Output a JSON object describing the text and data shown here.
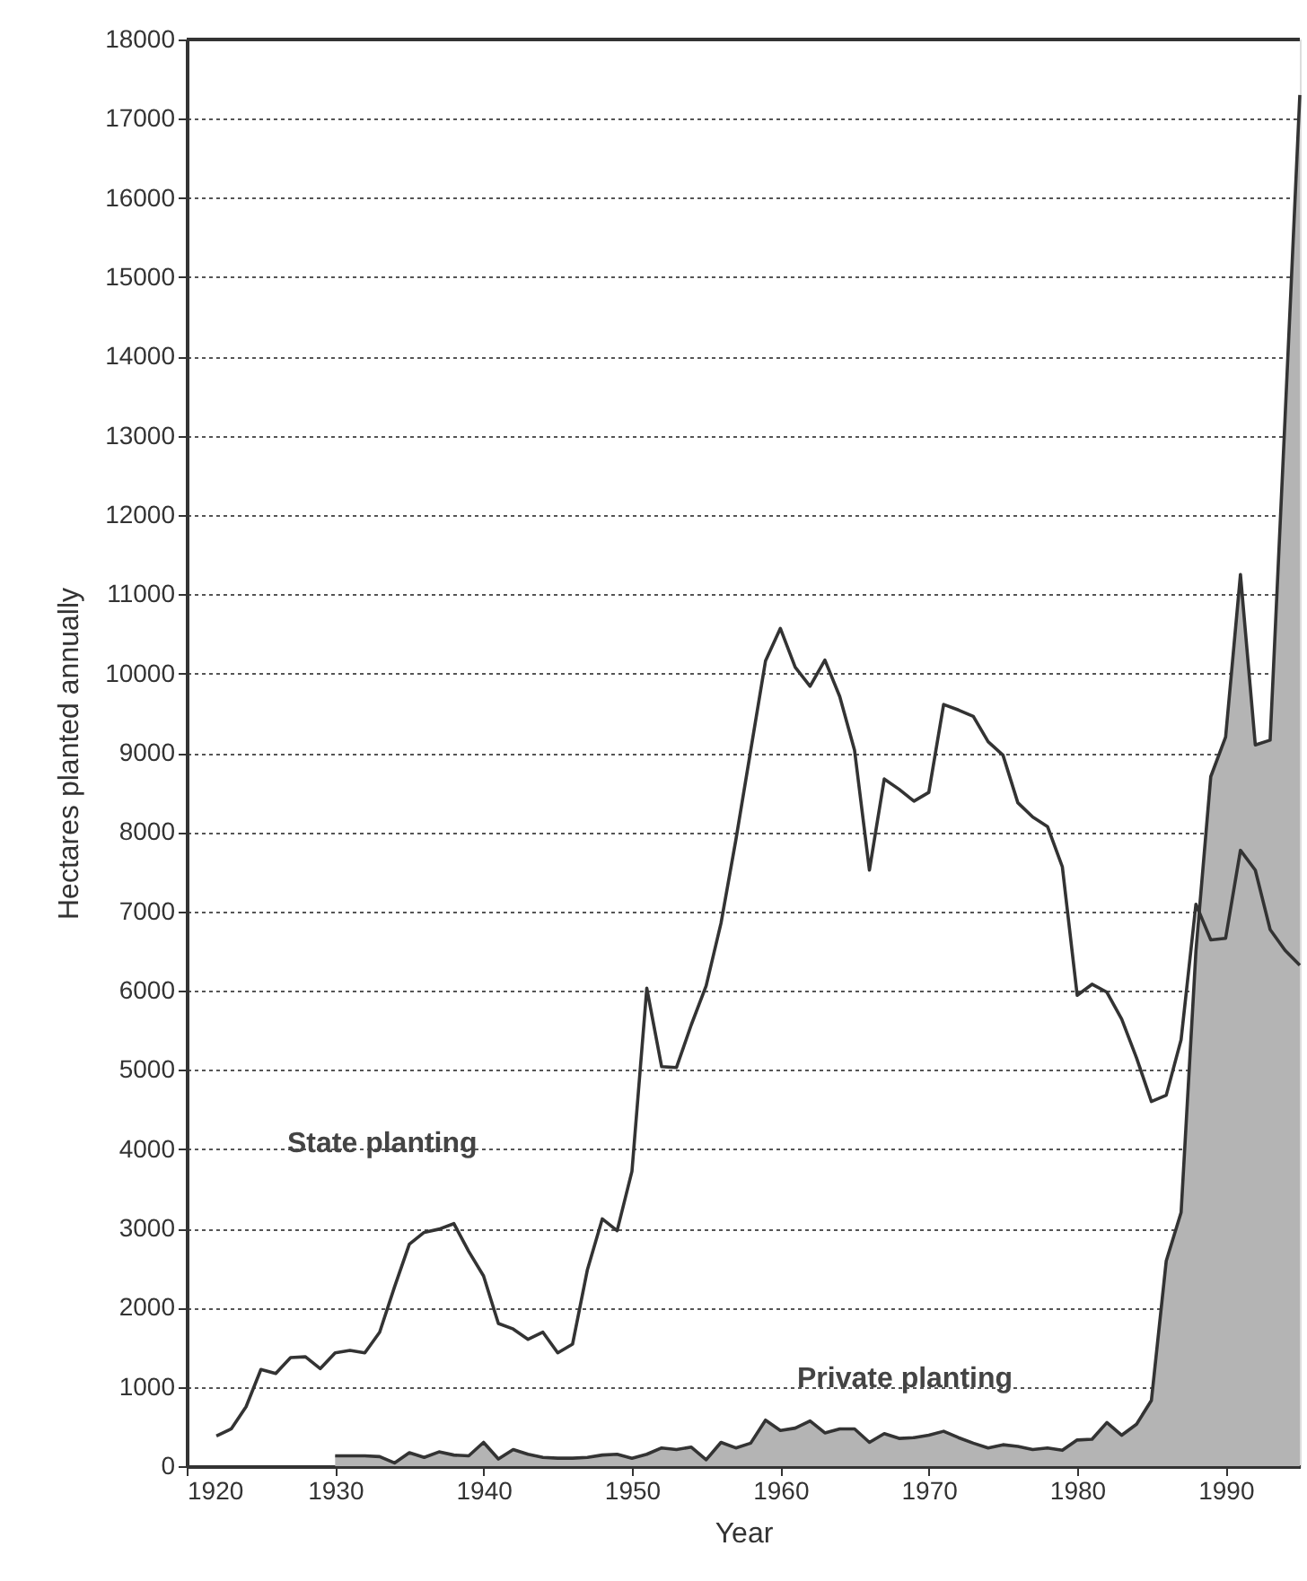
{
  "chart_data": {
    "type": "line",
    "xlabel": "Year",
    "ylabel": "Hectares planted annually",
    "xlim": [
      1920,
      1995
    ],
    "xticks": [
      1920,
      1930,
      1940,
      1950,
      1960,
      1970,
      1980,
      1990
    ],
    "ylim": [
      0,
      18000
    ],
    "yticks": [
      0,
      1000,
      2000,
      3000,
      4000,
      5000,
      6000,
      7000,
      8000,
      9000,
      10000,
      11000,
      12000,
      13000,
      14000,
      15000,
      16000,
      17000,
      18000
    ],
    "grid": "y",
    "marker": "none",
    "line_style": "solid",
    "series": [
      {
        "type": "area",
        "name": "Private   planting",
        "color": "#b4b4b4",
        "x": [
          1930,
          1931,
          1932,
          1933,
          1934,
          1935,
          1936,
          1937,
          1938,
          1939,
          1940,
          1941,
          1942,
          1943,
          1944,
          1945,
          1946,
          1947,
          1948,
          1949,
          1950,
          1951,
          1952,
          1953,
          1954,
          1955,
          1956,
          1957,
          1958,
          1959,
          1960,
          1961,
          1962,
          1963,
          1964,
          1965,
          1966,
          1967,
          1968,
          1969,
          1970,
          1971,
          1972,
          1973,
          1974,
          1975,
          1976,
          1977,
          1978,
          1979,
          1980,
          1981,
          1982,
          1983,
          1984,
          1985,
          1986,
          1987,
          1988,
          1989,
          1990,
          1991,
          1992,
          1993,
          1994,
          1995
        ],
        "values": [
          130,
          130,
          130,
          120,
          40,
          170,
          110,
          180,
          140,
          130,
          300,
          90,
          210,
          150,
          110,
          100,
          100,
          110,
          140,
          150,
          100,
          150,
          230,
          210,
          240,
          80,
          300,
          230,
          290,
          580,
          450,
          480,
          570,
          420,
          470,
          470,
          300,
          410,
          350,
          360,
          390,
          440,
          360,
          290,
          230,
          270,
          250,
          210,
          230,
          200,
          330,
          340,
          550,
          390,
          530,
          830,
          2590,
          3200,
          6500,
          8700,
          9200,
          11250,
          9100,
          9160,
          13200,
          17300
        ]
      },
      {
        "name": "State   planting",
        "color": "#333333",
        "x": [
          1922,
          1923,
          1924,
          1925,
          1926,
          1927,
          1928,
          1929,
          1930,
          1931,
          1932,
          1933,
          1934,
          1935,
          1936,
          1937,
          1938,
          1939,
          1940,
          1941,
          1942,
          1943,
          1944,
          1945,
          1946,
          1947,
          1948,
          1949,
          1950,
          1951,
          1952,
          1953,
          1954,
          1955,
          1956,
          1957,
          1958,
          1959,
          1960,
          1961,
          1962,
          1963,
          1964,
          1965,
          1966,
          1967,
          1968,
          1969,
          1970,
          1971,
          1972,
          1973,
          1974,
          1975,
          1976,
          1977,
          1978,
          1979,
          1980,
          1981,
          1982,
          1983,
          1984,
          1985,
          1986,
          1987,
          1988,
          1989,
          1990,
          1991,
          1992,
          1993,
          1994,
          1995
        ],
        "values": [
          380,
          470,
          750,
          1220,
          1170,
          1370,
          1380,
          1230,
          1430,
          1460,
          1430,
          1690,
          2260,
          2800,
          2950,
          2990,
          3060,
          2710,
          2400,
          1800,
          1730,
          1600,
          1690,
          1430,
          1540,
          2480,
          3120,
          2970,
          3720,
          6030,
          5040,
          5030,
          5570,
          6060,
          6850,
          7900,
          9030,
          10160,
          10570,
          10080,
          9840,
          10170,
          9710,
          9030,
          7520,
          8670,
          8540,
          8390,
          8500,
          9610,
          9540,
          9460,
          9140,
          8970,
          8370,
          8190,
          8070,
          7560,
          5940,
          6080,
          5980,
          5640,
          5150,
          4600,
          4680,
          5380,
          7090,
          6640,
          6660,
          7770,
          7520,
          6770,
          6510,
          6320
        ]
      }
    ]
  }
}
